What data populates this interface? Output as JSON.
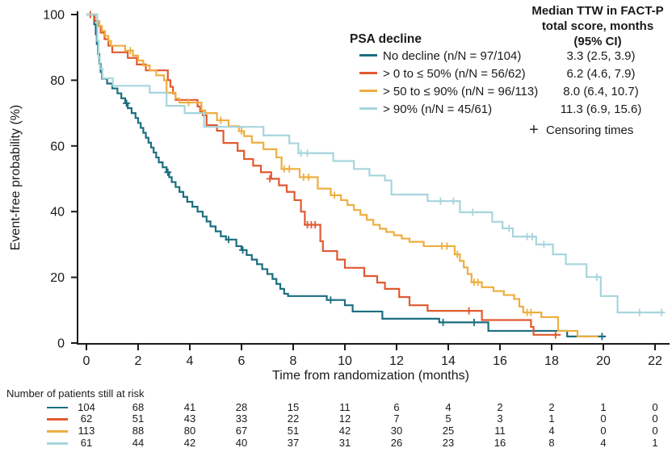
{
  "chart_data": {
    "type": "line",
    "subtype": "kaplan-meier-step",
    "title": "",
    "xlabel": "Time from randomization (months)",
    "ylabel": "Event-free probability (%)",
    "xlim": [
      0,
      22
    ],
    "ylim": [
      0,
      100
    ],
    "xticks": [
      0,
      2,
      4,
      6,
      8,
      10,
      12,
      14,
      16,
      18,
      20,
      22
    ],
    "yticks": [
      0,
      20,
      40,
      60,
      80,
      100
    ],
    "grid": false,
    "legend_position": "top-right-inside",
    "legend_title": "PSA decline",
    "median_header_lines": [
      "Median TTW in FACT-P",
      "total score, months",
      "(95% CI)"
    ],
    "censoring_marker": "+",
    "censoring_label": "Censoring times",
    "risk_table_label": "Number of patients still at risk",
    "risk_times": [
      0,
      2,
      4,
      6,
      8,
      10,
      12,
      14,
      16,
      18,
      20,
      22
    ],
    "axis_color": "#1a1a1a",
    "series": [
      {
        "name": "No decline (n/N = 97/104)",
        "median": "3.3 (2.5, 3.9)",
        "color": "#1b6e80",
        "at_risk": [
          104,
          68,
          41,
          28,
          15,
          11,
          6,
          4,
          2,
          2,
          1,
          0
        ],
        "steps": [
          [
            0,
            100
          ],
          [
            0.3,
            97
          ],
          [
            0.36,
            94
          ],
          [
            0.4,
            91
          ],
          [
            0.45,
            88
          ],
          [
            0.5,
            85
          ],
          [
            0.55,
            82.5
          ],
          [
            0.6,
            80.5
          ],
          [
            0.8,
            79
          ],
          [
            1.0,
            77.5
          ],
          [
            1.2,
            76
          ],
          [
            1.35,
            74.5
          ],
          [
            1.5,
            73
          ],
          [
            1.6,
            71.5
          ],
          [
            1.75,
            70
          ],
          [
            1.9,
            68.5
          ],
          [
            2.0,
            67
          ],
          [
            2.1,
            65.5
          ],
          [
            2.2,
            64
          ],
          [
            2.3,
            62.5
          ],
          [
            2.4,
            61
          ],
          [
            2.5,
            59.5
          ],
          [
            2.6,
            58
          ],
          [
            2.7,
            56.5
          ],
          [
            2.8,
            55
          ],
          [
            2.95,
            53.5
          ],
          [
            3.1,
            52
          ],
          [
            3.2,
            50.5
          ],
          [
            3.3,
            49
          ],
          [
            3.45,
            47.5
          ],
          [
            3.6,
            46
          ],
          [
            3.75,
            44.5
          ],
          [
            3.9,
            43
          ],
          [
            4.1,
            41.5
          ],
          [
            4.3,
            40
          ],
          [
            4.5,
            38.5
          ],
          [
            4.65,
            37
          ],
          [
            4.8,
            35.5
          ],
          [
            5.0,
            34
          ],
          [
            5.2,
            32.5
          ],
          [
            5.4,
            31.5
          ],
          [
            5.8,
            29.5
          ],
          [
            6.0,
            28.3
          ],
          [
            6.2,
            26.8
          ],
          [
            6.4,
            25.4
          ],
          [
            6.6,
            24
          ],
          [
            6.8,
            22.5
          ],
          [
            7.0,
            21
          ],
          [
            7.2,
            19.5
          ],
          [
            7.35,
            18
          ],
          [
            7.5,
            16.5
          ],
          [
            7.65,
            15
          ],
          [
            7.8,
            14.3
          ],
          [
            9.3,
            13.1
          ],
          [
            10.0,
            11.5
          ],
          [
            10.3,
            9.6
          ],
          [
            11.45,
            7.4
          ],
          [
            13.65,
            6.3
          ],
          [
            15.55,
            3.7
          ],
          [
            18.6,
            2.0
          ],
          [
            20.1,
            2.0
          ]
        ],
        "censors": [
          [
            1.55,
            73
          ],
          [
            3.15,
            52
          ],
          [
            5.5,
            31.5
          ],
          [
            6.05,
            28.3
          ],
          [
            9.45,
            13.1
          ],
          [
            13.8,
            6.3
          ],
          [
            15.0,
            6.3
          ],
          [
            19.95,
            2.0
          ]
        ]
      },
      {
        "name": "> 0 to ≤ 50% (n/N = 56/62)",
        "median": "6.2 (4.6, 7.9)",
        "color": "#e05a30",
        "at_risk": [
          62,
          51,
          43,
          33,
          22,
          12,
          7,
          5,
          3,
          1,
          0,
          0
        ],
        "steps": [
          [
            0,
            100
          ],
          [
            0.32,
            98
          ],
          [
            0.45,
            96.5
          ],
          [
            0.55,
            94.5
          ],
          [
            0.7,
            92.5
          ],
          [
            0.85,
            90.5
          ],
          [
            1.0,
            88.5
          ],
          [
            1.6,
            86.8
          ],
          [
            1.95,
            84.8
          ],
          [
            2.3,
            83
          ],
          [
            3.15,
            80
          ],
          [
            3.25,
            78
          ],
          [
            3.35,
            76
          ],
          [
            3.45,
            74
          ],
          [
            4.3,
            72
          ],
          [
            4.4,
            70.5
          ],
          [
            4.5,
            69.3
          ],
          [
            4.65,
            66.3
          ],
          [
            5.05,
            64.6
          ],
          [
            5.3,
            60.9
          ],
          [
            5.85,
            58.5
          ],
          [
            6.1,
            56
          ],
          [
            6.45,
            54
          ],
          [
            6.75,
            52
          ],
          [
            7.15,
            50
          ],
          [
            7.45,
            48
          ],
          [
            7.75,
            46
          ],
          [
            8.05,
            43.5
          ],
          [
            8.3,
            40
          ],
          [
            8.45,
            36
          ],
          [
            9.05,
            31
          ],
          [
            9.15,
            28
          ],
          [
            9.7,
            25.4
          ],
          [
            10.0,
            22.9
          ],
          [
            10.75,
            20.4
          ],
          [
            11.25,
            18.4
          ],
          [
            11.55,
            16.5
          ],
          [
            12.1,
            14
          ],
          [
            12.5,
            11.5
          ],
          [
            13.2,
            9.8
          ],
          [
            15.3,
            7.0
          ],
          [
            17.2,
            4.9
          ],
          [
            17.3,
            2.5
          ],
          [
            18.35,
            2.5
          ]
        ],
        "censors": [
          [
            0.15,
            100
          ],
          [
            7.1,
            50
          ],
          [
            8.55,
            36
          ],
          [
            8.7,
            36
          ],
          [
            8.85,
            36
          ],
          [
            14.8,
            9.8
          ],
          [
            18.15,
            2.5
          ]
        ]
      },
      {
        "name": "> 50 to ≤ 90% (n/N = 96/113)",
        "median": "8.0 (6.4, 10.7)",
        "color": "#eeae3f",
        "at_risk": [
          113,
          88,
          80,
          67,
          51,
          42,
          30,
          25,
          11,
          4,
          0,
          0
        ],
        "steps": [
          [
            0,
            100
          ],
          [
            0.42,
            98
          ],
          [
            0.5,
            96.5
          ],
          [
            0.6,
            95
          ],
          [
            0.72,
            93.5
          ],
          [
            0.85,
            92
          ],
          [
            0.95,
            90.5
          ],
          [
            1.5,
            89
          ],
          [
            1.8,
            87.5
          ],
          [
            2.0,
            86
          ],
          [
            2.2,
            84.5
          ],
          [
            2.45,
            83
          ],
          [
            2.7,
            81.5
          ],
          [
            3.0,
            80
          ],
          [
            3.1,
            76.2
          ],
          [
            3.45,
            74.4
          ],
          [
            3.6,
            73.2
          ],
          [
            4.45,
            70.8
          ],
          [
            4.6,
            70
          ],
          [
            5.05,
            67.8
          ],
          [
            5.5,
            66
          ],
          [
            5.9,
            64.5
          ],
          [
            6.1,
            63
          ],
          [
            6.4,
            61
          ],
          [
            6.85,
            59
          ],
          [
            7.35,
            56.5
          ],
          [
            7.55,
            53
          ],
          [
            8.25,
            50.5
          ],
          [
            8.95,
            47
          ],
          [
            9.45,
            45
          ],
          [
            9.85,
            43.5
          ],
          [
            10.1,
            42
          ],
          [
            10.35,
            40.5
          ],
          [
            10.6,
            39
          ],
          [
            10.85,
            37.5
          ],
          [
            11.1,
            36
          ],
          [
            11.35,
            34.8
          ],
          [
            11.6,
            33.8
          ],
          [
            11.9,
            32.8
          ],
          [
            12.2,
            31.8
          ],
          [
            12.5,
            30.8
          ],
          [
            13.05,
            29.5
          ],
          [
            14.25,
            27
          ],
          [
            14.45,
            25
          ],
          [
            14.6,
            23
          ],
          [
            14.75,
            21
          ],
          [
            14.9,
            18.5
          ],
          [
            15.3,
            17
          ],
          [
            15.75,
            15.8
          ],
          [
            16.15,
            14.6
          ],
          [
            16.55,
            13.4
          ],
          [
            16.75,
            11.1
          ],
          [
            16.9,
            9.3
          ],
          [
            17.6,
            7.9
          ],
          [
            18.25,
            3.7
          ],
          [
            19.0,
            2.0
          ],
          [
            19.8,
            2.0
          ]
        ],
        "censors": [
          [
            1.7,
            89
          ],
          [
            3.95,
            73.2
          ],
          [
            5.2,
            67.8
          ],
          [
            6.0,
            64.5
          ],
          [
            7.65,
            53
          ],
          [
            7.85,
            53
          ],
          [
            8.4,
            50.5
          ],
          [
            8.6,
            50.5
          ],
          [
            9.6,
            45
          ],
          [
            13.75,
            29.5
          ],
          [
            13.95,
            29.5
          ],
          [
            14.35,
            27
          ],
          [
            15.0,
            18.5
          ],
          [
            15.15,
            18.5
          ],
          [
            17.05,
            9.3
          ],
          [
            17.2,
            9.3
          ]
        ]
      },
      {
        "name": "> 90% (n/N = 45/61)",
        "median": "11.3 (6.9, 15.6)",
        "color": "#a6d5dc",
        "at_risk": [
          61,
          44,
          42,
          40,
          37,
          31,
          26,
          23,
          16,
          8,
          4,
          1
        ],
        "steps": [
          [
            0,
            100
          ],
          [
            0.42,
            92
          ],
          [
            0.47,
            87
          ],
          [
            0.52,
            83.5
          ],
          [
            0.62,
            80.6
          ],
          [
            1.02,
            78.3
          ],
          [
            2.45,
            76.2
          ],
          [
            3.1,
            72.2
          ],
          [
            3.8,
            70
          ],
          [
            4.55,
            65.8
          ],
          [
            6.85,
            63.2
          ],
          [
            7.85,
            60.8
          ],
          [
            8.2,
            57.8
          ],
          [
            9.55,
            55.4
          ],
          [
            10.35,
            53
          ],
          [
            10.95,
            51
          ],
          [
            11.55,
            49.5
          ],
          [
            11.8,
            45.2
          ],
          [
            13.2,
            43.2
          ],
          [
            14.45,
            39.8
          ],
          [
            15.7,
            36.9
          ],
          [
            16.1,
            34.9
          ],
          [
            16.5,
            32.4
          ],
          [
            17.4,
            30
          ],
          [
            18.05,
            27
          ],
          [
            18.55,
            24
          ],
          [
            19.35,
            20.1
          ],
          [
            19.9,
            14.3
          ],
          [
            20.55,
            9.3
          ],
          [
            22.35,
            9.3
          ]
        ],
        "censors": [
          [
            8.3,
            57.8
          ],
          [
            8.55,
            57.8
          ],
          [
            13.7,
            43.2
          ],
          [
            14.2,
            43.2
          ],
          [
            14.95,
            39.8
          ],
          [
            16.35,
            34.9
          ],
          [
            17.05,
            32.4
          ],
          [
            17.25,
            32.4
          ],
          [
            17.7,
            30
          ],
          [
            19.75,
            20.1
          ],
          [
            21.4,
            9.3
          ],
          [
            22.25,
            9.3
          ]
        ]
      }
    ]
  }
}
